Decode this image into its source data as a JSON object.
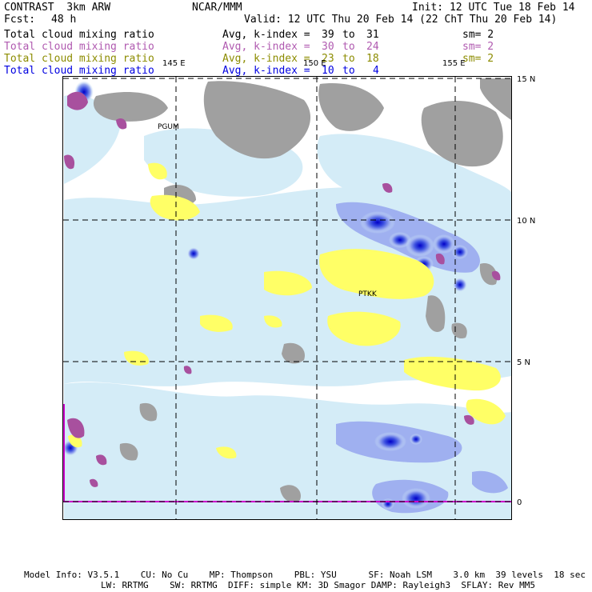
{
  "header": {
    "model": "CONTRAST  3km ARW",
    "center": "NCAR/MMM",
    "init": "Init: 12 UTC Tue 18 Feb 14",
    "fcst_label": "Fcst:",
    "fcst_value": "48 h",
    "valid": "Valid: 12 UTC Thu 20 Feb 14 (22 ChT Thu 20 Feb 14)"
  },
  "fields": [
    {
      "name": "Total cloud mixing ratio",
      "avg": "Avg, k-index =",
      "k_from": "39",
      "to": "to",
      "k_to": "31",
      "sm": "sm= 2",
      "color": "#000000"
    },
    {
      "name": "Total cloud mixing ratio",
      "avg": "Avg, k-index =",
      "k_from": "30",
      "to": "to",
      "k_to": "24",
      "sm": "sm= 2",
      "color": "#b05ab0"
    },
    {
      "name": "Total cloud mixing ratio",
      "avg": "Avg, k-index =",
      "k_from": "23",
      "to": "to",
      "k_to": "18",
      "sm": "sm= 2",
      "color": "#8c8c00"
    },
    {
      "name": "Total cloud mixing ratio",
      "avg": "Avg, k-index =",
      "k_from": "10",
      "to": "to",
      "k_to": "4",
      "sm": "",
      "color": "#0000e0"
    }
  ],
  "map": {
    "lon_labels": [
      "145 E",
      "150 E",
      "155 E"
    ],
    "lat_labels": [
      "15 N",
      "10 N",
      "5 N",
      "0"
    ],
    "stations": [
      "PGUM",
      "PTKK"
    ],
    "layer_colors": {
      "high_cloud": "#a0a0a0",
      "mid_high_cloud": "#a8509e",
      "mid_cloud": "#ffff66",
      "low_cloud_light": "#d4ecf7",
      "low_cloud_blue": "#6f7fe8",
      "low_cloud_core": "#1818d0",
      "equator_line": "#cc00cc"
    }
  },
  "footer": {
    "line1": "Model Info: V3.5.1    CU: No Cu    MP: Thompson    PBL: YSU      SF: Noah LSM    3.0 km  39 levels  18 sec",
    "line2": "LW: RRTMG    SW: RRTMG  DIFF: simple KM: 3D Smagor DAMP: Rayleigh3  SFLAY: Rev MM5"
  }
}
